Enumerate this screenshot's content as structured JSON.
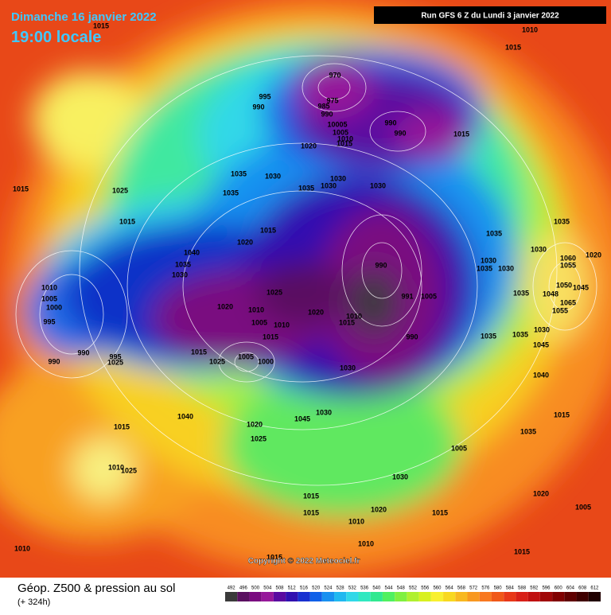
{
  "header": {
    "date": "Dimanche 16 janvier 2022",
    "time": "19:00 locale",
    "run": "Run GFS 6 Z du Lundi 3 janvier 2022"
  },
  "copyright": "Copyright © 2022 Meteociel.fr",
  "footer": {
    "title": "Géop. Z500 & pression au sol",
    "lead": "(+ 324h)"
  },
  "scale": {
    "ticks": [
      492,
      496,
      500,
      504,
      508,
      512,
      516,
      520,
      524,
      528,
      532,
      536,
      540,
      544,
      548,
      552,
      556,
      560,
      564,
      568,
      572,
      576,
      580,
      584,
      588,
      592,
      596,
      600,
      604,
      608,
      612
    ],
    "colors": [
      "#3a3a3a",
      "#5a1060",
      "#7a0a80",
      "#96189a",
      "#5a0aa0",
      "#3010b0",
      "#1830d0",
      "#1060e8",
      "#1890f0",
      "#20b8f0",
      "#30d8e8",
      "#30e8c0",
      "#30e890",
      "#50f060",
      "#80f040",
      "#b0f030",
      "#d8f020",
      "#f8f030",
      "#f8d820",
      "#f8b820",
      "#f89820",
      "#f87820",
      "#f05818",
      "#e83818",
      "#d82018",
      "#c01010",
      "#a00808",
      "#800000",
      "#600000",
      "#400000",
      "#200000"
    ]
  },
  "pressure_labels": [
    "1015",
    "1010",
    "1015",
    "970",
    "995",
    "975",
    "990",
    "985",
    "990",
    "10005",
    "990",
    "990",
    "1005",
    "1010",
    "1015",
    "1015",
    "1020",
    "1035",
    "1030",
    "1030",
    "1035",
    "1030",
    "1030",
    "1015",
    "1025",
    "1035",
    "1015",
    "1015",
    "1035",
    "1020",
    "1035",
    "1040",
    "1030",
    "1060",
    "1020",
    "1030",
    "990",
    "1035",
    "1035",
    "1030",
    "1055",
    "1030",
    "1010",
    "1025",
    "1035",
    "1050",
    "1045",
    "1048",
    "991",
    "1005",
    "1005",
    "1000",
    "1020",
    "1010",
    "1020",
    "1065",
    "1055",
    "1010",
    "995",
    "1005",
    "1010",
    "1015",
    "1030",
    "1035",
    "1035",
    "1015",
    "990",
    "1045",
    "1015",
    "990",
    "995",
    "1005",
    "1000",
    "1025",
    "990",
    "1025",
    "1030",
    "1040",
    "1040",
    "1045",
    "1030",
    "1020",
    "1015",
    "1015",
    "1035",
    "1025",
    "1005",
    "1010",
    "1025",
    "1030",
    "1015",
    "1020",
    "1015",
    "1020",
    "1015",
    "1005",
    "1010",
    "1010",
    "1010",
    "1015",
    "1015"
  ]
}
